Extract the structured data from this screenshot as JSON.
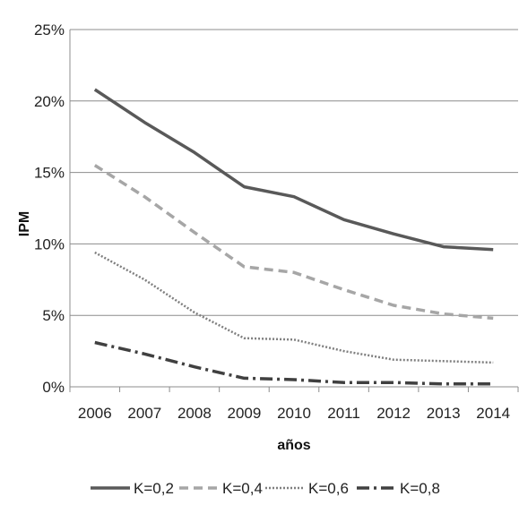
{
  "chart_data": {
    "type": "line",
    "title": "",
    "xlabel": "años",
    "ylabel": "IPM",
    "x": [
      "2006",
      "2007",
      "2008",
      "2009",
      "2010",
      "2011",
      "2012",
      "2013",
      "2014"
    ],
    "ylim": [
      0,
      25
    ],
    "yticks": [
      0,
      5,
      10,
      15,
      20,
      25
    ],
    "ytick_labels": [
      "0%",
      "5%",
      "10%",
      "15%",
      "20%",
      "25%"
    ],
    "grid": "horizontal",
    "legend_position": "bottom",
    "series": [
      {
        "name": "K=0,2",
        "values": [
          20.8,
          18.5,
          16.4,
          14.0,
          13.3,
          11.7,
          10.7,
          9.8,
          9.6
        ],
        "color": "#595959",
        "style": "solid"
      },
      {
        "name": "K=0,4",
        "values": [
          15.5,
          13.3,
          10.8,
          8.4,
          8.0,
          6.8,
          5.7,
          5.1,
          4.8
        ],
        "color": "#a6a6a6",
        "style": "dashed"
      },
      {
        "name": "K=0,6",
        "values": [
          9.4,
          7.5,
          5.2,
          3.4,
          3.3,
          2.5,
          1.9,
          1.8,
          1.7
        ],
        "color": "#7f7f7f",
        "style": "dotted"
      },
      {
        "name": "K=0,8",
        "values": [
          3.1,
          2.3,
          1.4,
          0.6,
          0.5,
          0.3,
          0.3,
          0.2,
          0.2
        ],
        "color": "#404040",
        "style": "dashdot"
      }
    ]
  }
}
